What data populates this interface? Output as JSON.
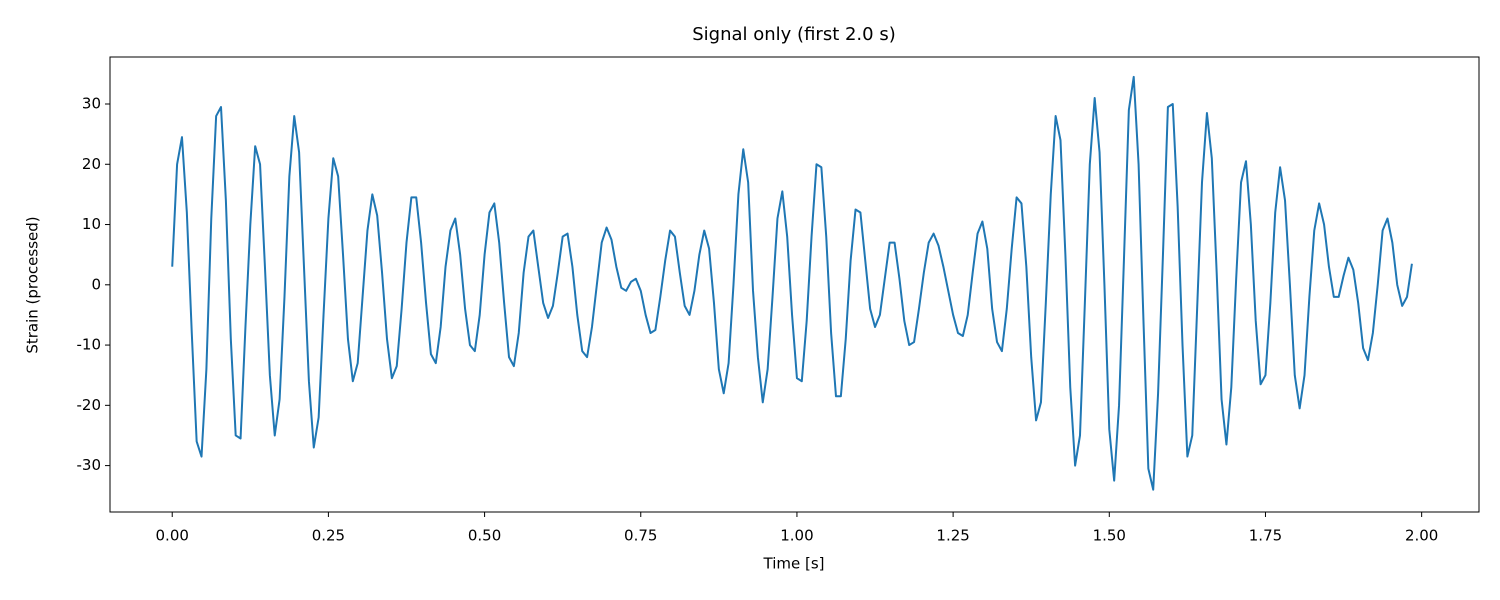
{
  "chart_data": {
    "type": "line",
    "title": "Signal only (first 2.0 s)",
    "xlabel": "Time [s]",
    "ylabel": "Strain (processed)",
    "xlim": [
      -0.0996,
      2.0918
    ],
    "ylim": [
      -37.7,
      37.8
    ],
    "xticks": [
      {
        "value": 0,
        "label": "0.00"
      },
      {
        "value": 0.25,
        "label": "0.25"
      },
      {
        "value": 0.5,
        "label": "0.50"
      },
      {
        "value": 0.75,
        "label": "0.75"
      },
      {
        "value": 1,
        "label": "1.00"
      },
      {
        "value": 1.25,
        "label": "1.25"
      },
      {
        "value": 1.5,
        "label": "1.50"
      },
      {
        "value": 1.75,
        "label": "1.75"
      },
      {
        "value": 2,
        "label": "2.00"
      }
    ],
    "yticks": [
      -30,
      -20,
      -10,
      0,
      10,
      20,
      30
    ],
    "x": [
      0,
      0.0078,
      0.0156,
      0.0234,
      0.0313,
      0.0391,
      0.0469,
      0.0547,
      0.0625,
      0.0703,
      0.0781,
      0.0859,
      0.0938,
      0.1016,
      0.1094,
      0.1172,
      0.125,
      0.1328,
      0.1406,
      0.1484,
      0.1563,
      0.1641,
      0.1719,
      0.1797,
      0.1875,
      0.1953,
      0.2031,
      0.2109,
      0.2188,
      0.2266,
      0.2344,
      0.2422,
      0.25,
      0.2578,
      0.2656,
      0.2734,
      0.2813,
      0.2891,
      0.2969,
      0.3047,
      0.3125,
      0.3203,
      0.3281,
      0.3359,
      0.3438,
      0.3516,
      0.3594,
      0.3672,
      0.375,
      0.3828,
      0.3906,
      0.3984,
      0.4063,
      0.4141,
      0.4219,
      0.4297,
      0.4375,
      0.4453,
      0.4531,
      0.4609,
      0.4688,
      0.4766,
      0.4844,
      0.4922,
      0.5,
      0.5078,
      0.5156,
      0.5234,
      0.5313,
      0.5391,
      0.5469,
      0.5547,
      0.5625,
      0.5703,
      0.5781,
      0.5859,
      0.5938,
      0.6016,
      0.6094,
      0.6172,
      0.625,
      0.6328,
      0.6406,
      0.6484,
      0.6563,
      0.6641,
      0.6719,
      0.6797,
      0.6875,
      0.6953,
      0.7031,
      0.7109,
      0.7188,
      0.7266,
      0.7344,
      0.7422,
      0.75,
      0.7578,
      0.7656,
      0.7734,
      0.7813,
      0.7891,
      0.7969,
      0.8047,
      0.8125,
      0.8203,
      0.8281,
      0.8359,
      0.8438,
      0.8516,
      0.8594,
      0.8672,
      0.875,
      0.8828,
      0.8906,
      0.8984,
      0.9063,
      0.9141,
      0.9219,
      0.9297,
      0.9375,
      0.9453,
      0.9531,
      0.9609,
      0.9688,
      0.9766,
      0.9844,
      0.9922,
      1,
      1.0078,
      1.0156,
      1.0234,
      1.0313,
      1.0391,
      1.0469,
      1.0547,
      1.0625,
      1.0703,
      1.0781,
      1.0859,
      1.0938,
      1.1016,
      1.1094,
      1.1172,
      1.125,
      1.1328,
      1.1406,
      1.1484,
      1.1563,
      1.1641,
      1.1719,
      1.1797,
      1.1875,
      1.1953,
      1.2031,
      1.2109,
      1.2188,
      1.2266,
      1.2344,
      1.2422,
      1.25,
      1.2578,
      1.2656,
      1.2734,
      1.2813,
      1.2891,
      1.2969,
      1.3047,
      1.3125,
      1.3203,
      1.3281,
      1.3359,
      1.3438,
      1.3516,
      1.3594,
      1.3672,
      1.375,
      1.3828,
      1.3906,
      1.3984,
      1.4063,
      1.4141,
      1.4219,
      1.4297,
      1.4375,
      1.4453,
      1.4531,
      1.4609,
      1.4688,
      1.4766,
      1.4844,
      1.4922,
      1.5,
      1.5078,
      1.5156,
      1.5234,
      1.5313,
      1.5391,
      1.5469,
      1.5547,
      1.5625,
      1.5703,
      1.5781,
      1.5859,
      1.5938,
      1.6016,
      1.6094,
      1.6172,
      1.625,
      1.6328,
      1.6406,
      1.6484,
      1.6563,
      1.6641,
      1.6719,
      1.6797,
      1.6875,
      1.6953,
      1.7031,
      1.7109,
      1.7188,
      1.7266,
      1.7344,
      1.7422,
      1.75,
      1.7578,
      1.7656,
      1.7734,
      1.7813,
      1.7891,
      1.7969,
      1.8047,
      1.8125,
      1.8203,
      1.8281,
      1.8359,
      1.8438,
      1.8516,
      1.8594,
      1.8672,
      1.875,
      1.8828,
      1.8906,
      1.8984,
      1.9063,
      1.9141,
      1.9219,
      1.9297,
      1.9375,
      1.9453,
      1.9531,
      1.9609,
      1.9688,
      1.9766,
      1.9844
    ],
    "series": [
      {
        "color": "#1f77b4",
        "values": [
          3,
          20,
          24.5,
          12,
          -8,
          -26,
          -28.5,
          -14,
          11,
          28,
          29.5,
          14,
          -9,
          -25,
          -25.5,
          -7,
          10,
          23,
          20,
          3,
          -15,
          -25,
          -19,
          -2,
          18,
          28,
          22,
          3,
          -16,
          -27,
          -22,
          -5,
          11,
          21,
          18,
          5,
          -9,
          -16,
          -13,
          -2,
          9,
          15,
          11.5,
          2,
          -9,
          -15.5,
          -13.5,
          -4,
          7,
          14.5,
          14.5,
          7,
          -3,
          -11.5,
          -13,
          -7,
          3,
          9,
          11,
          5,
          -4,
          -10,
          -11,
          -5,
          5,
          12,
          13.5,
          7,
          -3,
          -12,
          -13.5,
          -8,
          2,
          8,
          9,
          3,
          -3,
          -5.5,
          -3.5,
          2,
          8,
          8.5,
          3,
          -5,
          -11,
          -12,
          -7,
          0,
          7,
          9.5,
          7.5,
          3,
          -0.5,
          -1,
          0.5,
          1,
          -1,
          -5,
          -8,
          -7.5,
          -2,
          4,
          9,
          8,
          2,
          -3.5,
          -5,
          -1,
          5,
          9,
          6,
          -3,
          -14,
          -18,
          -13,
          0,
          15,
          22.5,
          17,
          -1,
          -12,
          -19.5,
          -14,
          -2,
          11,
          15.5,
          8,
          -5,
          -15.5,
          -16,
          -6,
          8,
          20,
          19.5,
          8,
          -8,
          -18.5,
          -18.5,
          -9,
          4,
          12.5,
          12,
          4,
          -4,
          -7,
          -5,
          1,
          7,
          7,
          1,
          -6,
          -10,
          -9.5,
          -4,
          2,
          7,
          8.5,
          6.5,
          3,
          -1,
          -5,
          -8,
          -8.5,
          -5,
          2,
          8.5,
          10.5,
          6,
          -4,
          -9.5,
          -11,
          -4,
          6,
          14.5,
          13.5,
          3,
          -12,
          -22.5,
          -19.5,
          -3,
          15,
          28,
          24,
          5,
          -17,
          -30,
          -25,
          -3,
          20,
          31,
          22,
          0,
          -24,
          -32.5,
          -20,
          4,
          29,
          34.5,
          20,
          -6,
          -30.5,
          -34,
          -18,
          5,
          29.5,
          30,
          13,
          -10,
          -28.5,
          -25,
          -4,
          17,
          28.5,
          21,
          2,
          -19,
          -26.5,
          -17,
          1,
          17,
          20.5,
          10,
          -6,
          -16.5,
          -15,
          -3,
          12,
          19.5,
          14,
          0,
          -15,
          -20.5,
          -15,
          -2,
          9,
          13.5,
          10,
          3,
          -2,
          -2,
          1.5,
          4.5,
          2.5,
          -3,
          -10.5,
          -12.5,
          -8,
          0,
          9,
          11,
          7,
          0,
          -3.5,
          -2,
          3.5
        ]
      }
    ]
  }
}
